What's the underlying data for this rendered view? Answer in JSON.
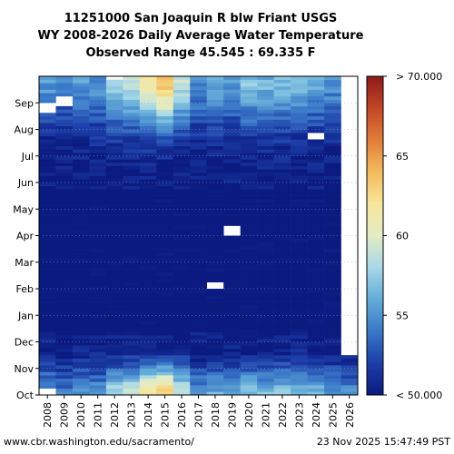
{
  "chart_data": {
    "type": "heatmap",
    "title_lines": [
      "11251000 San Joaquin R blw Friant USGS",
      "WY 2008-2026 Daily Average Water Temperature",
      "Observed Range 45.545 : 69.335 F"
    ],
    "x_categories": [
      "2008",
      "2009",
      "2010",
      "2011",
      "2012",
      "2013",
      "2014",
      "2015",
      "2016",
      "2017",
      "2018",
      "2019",
      "2020",
      "2021",
      "2022",
      "2023",
      "2024",
      "2025",
      "2026"
    ],
    "y_month_ticks": [
      "Oct",
      "Nov",
      "Dec",
      "Jan",
      "Feb",
      "Mar",
      "Apr",
      "May",
      "Jun",
      "Jul",
      "Aug",
      "Sep"
    ],
    "colorbar": {
      "min": 50,
      "max": 70,
      "tick_labels": [
        "< 50.000",
        "55",
        "60",
        "65",
        "> 70.000"
      ],
      "tick_values": [
        50,
        55,
        60,
        65,
        70
      ],
      "colormap_stops": [
        "#0a1a80",
        "#1c3ea8",
        "#3a78c8",
        "#63acd8",
        "#a7d8e8",
        "#e3ecc4",
        "#f7e69a",
        "#f3bb5c",
        "#e27d38",
        "#c24624",
        "#8e1a1a"
      ]
    },
    "year_profiles": [
      {
        "year": "2008",
        "amp": 0.55,
        "missing": [
          [
            0.0,
            0.02
          ],
          [
            0.89,
            0.92
          ]
        ]
      },
      {
        "year": "2009",
        "amp": 0.4,
        "missing": [
          [
            0.91,
            0.94
          ]
        ]
      },
      {
        "year": "2010",
        "amp": 0.55,
        "missing": []
      },
      {
        "year": "2011",
        "amp": 0.5,
        "missing": []
      },
      {
        "year": "2012",
        "amp": 0.8,
        "missing": [
          [
            0.99,
            1.0
          ]
        ]
      },
      {
        "year": "2013",
        "amp": 0.9,
        "missing": []
      },
      {
        "year": "2014",
        "amp": 1.15,
        "missing": []
      },
      {
        "year": "2015",
        "amp": 1.35,
        "missing": []
      },
      {
        "year": "2016",
        "amp": 0.9,
        "missing": []
      },
      {
        "year": "2017",
        "amp": 0.5,
        "missing": []
      },
      {
        "year": "2018",
        "amp": 0.6,
        "missing": [
          [
            0.33,
            0.35
          ]
        ]
      },
      {
        "year": "2019",
        "amp": 0.5,
        "missing": [
          [
            0.5,
            0.53
          ]
        ]
      },
      {
        "year": "2020",
        "amp": 0.7,
        "missing": []
      },
      {
        "year": "2021",
        "amp": 0.65,
        "missing": []
      },
      {
        "year": "2022",
        "amp": 0.7,
        "missing": []
      },
      {
        "year": "2023",
        "amp": 0.65,
        "missing": []
      },
      {
        "year": "2024",
        "amp": 0.6,
        "missing": [
          [
            0.8,
            0.82
          ]
        ]
      },
      {
        "year": "2025",
        "amp": 0.5,
        "missing": []
      },
      {
        "year": "2026",
        "amp": 0.45,
        "missing": [
          [
            0.12,
            1.0
          ]
        ]
      }
    ],
    "footer_left": "www.cbr.washington.edu/sacramento/",
    "footer_right": "23 Nov 2025 15:47:49 PST"
  }
}
